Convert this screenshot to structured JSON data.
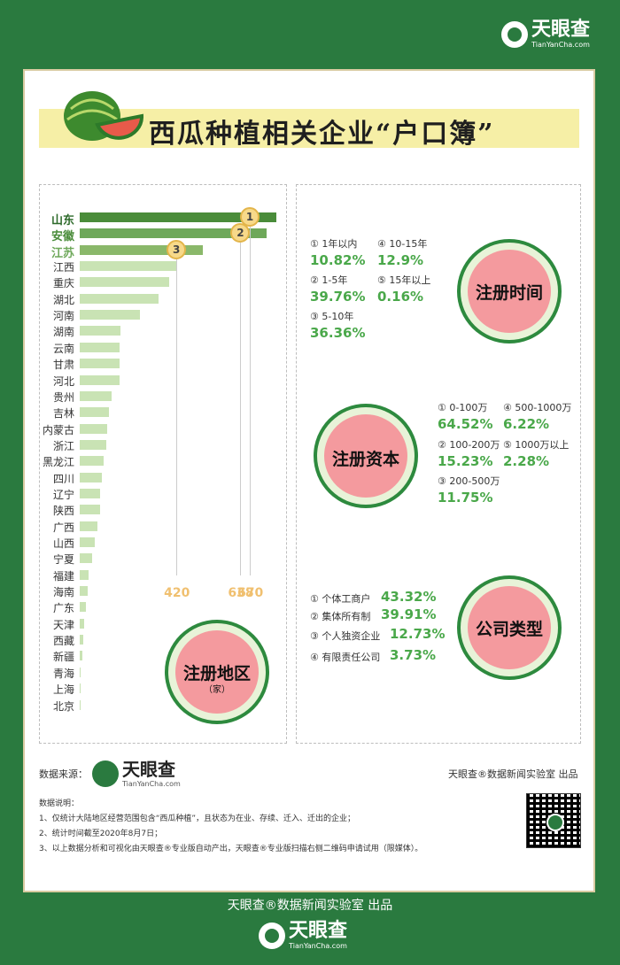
{
  "brand": {
    "name": "天眼查",
    "sub": "TianYanCha.com"
  },
  "title": "西瓜种植相关企业“户口簿”",
  "colors": {
    "bg": "#2a7a3f",
    "bar_top": "#4a8c3a",
    "bar_mid": "#6ea85a",
    "bar_light": "#c9e3b4"
  },
  "chart_data": {
    "type": "bar",
    "title": "注册地区",
    "unit": "（家）",
    "categories": [
      "山东",
      "安徽",
      "江苏",
      "江西",
      "重庆",
      "湖北",
      "河南",
      "湖南",
      "云南",
      "甘肃",
      "河北",
      "贵州",
      "吉林",
      "内蒙古",
      "浙江",
      "黑龙江",
      "四川",
      "辽宁",
      "陕西",
      "广西",
      "山西",
      "宁夏",
      "福建",
      "海南",
      "广东",
      "天津",
      "西藏",
      "新疆",
      "青海",
      "上海",
      "北京"
    ],
    "values": [
      670,
      638,
      420,
      330,
      305,
      270,
      205,
      140,
      135,
      135,
      135,
      110,
      100,
      95,
      90,
      80,
      75,
      70,
      68,
      60,
      50,
      42,
      30,
      28,
      22,
      15,
      12,
      8,
      4,
      2,
      1
    ],
    "rank_labels": [
      "1",
      "2",
      "3"
    ],
    "tick_labels": [
      "420",
      "638",
      "670"
    ],
    "xlim": [
      0,
      700
    ]
  },
  "reg_time": {
    "title": "注册时间",
    "items": [
      {
        "label": "① 1年以内",
        "value": "10.82%"
      },
      {
        "label": "④ 10-15年",
        "value": "12.9%"
      },
      {
        "label": "② 1-5年",
        "value": "39.76%"
      },
      {
        "label": "⑤ 15年以上",
        "value": "0.16%"
      },
      {
        "label": "③ 5-10年",
        "value": "36.36%"
      }
    ]
  },
  "reg_capital": {
    "title": "注册资本",
    "items": [
      {
        "label": "① 0-100万",
        "value": "64.52%"
      },
      {
        "label": "④ 500-1000万",
        "value": "6.22%"
      },
      {
        "label": "② 100-200万",
        "value": "15.23%"
      },
      {
        "label": "⑤ 1000万以上",
        "value": "2.28%"
      },
      {
        "label": "③ 200-500万",
        "value": "11.75%"
      }
    ]
  },
  "company_type": {
    "title": "公司类型",
    "items": [
      {
        "label": "① 个体工商户",
        "value": "43.32%"
      },
      {
        "label": "② 集体所有制",
        "value": "39.91%"
      },
      {
        "label": "③ 个人独资企业",
        "value": "12.73%"
      },
      {
        "label": "④ 有限责任公司",
        "value": "3.73%"
      }
    ]
  },
  "source_label": "数据来源：",
  "producer": "天眼查®数据新闻实验室 出品",
  "notes": {
    "heading": "数据说明：",
    "lines": [
      "1、仅统计大陆地区经营范围包含“西瓜种植”，且状态为在业、存续、迁入、迁出的企业；",
      "2、统计时间截至2020年8月7日；",
      "3、以上数据分析和可视化由天眼查®专业版自动产出，天眼查®专业版扫描右侧二维码申请试用（限媒体）。"
    ]
  },
  "bottom_producer": "天眼查®数据新闻实验室 出品"
}
